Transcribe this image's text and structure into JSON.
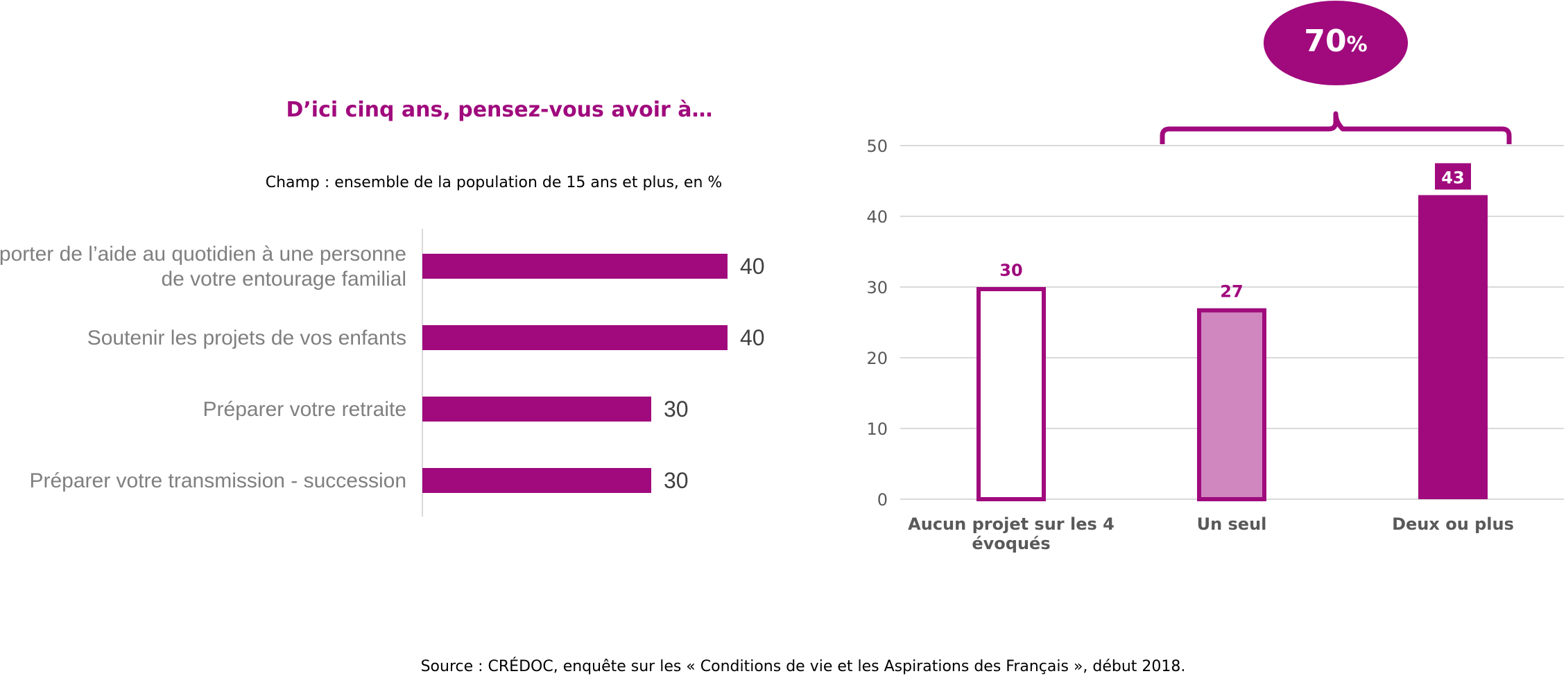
{
  "title": "D’ici cinq ans, pensez-vous avoir à…",
  "subtitle": "Champ : ensemble de la population de 15 ans et plus, en %",
  "source": "Source : CRÉDOC, enquête sur les « Conditions de vie et les Aspirations des Français », début 2018.",
  "colors": {
    "accent": "#a00a7d",
    "light": "#d086bf",
    "title": "#a00a7d",
    "axis_text": "#595959",
    "grid": "#d9d9d9",
    "cat_text": "#7f7f7f"
  },
  "callout": {
    "number": "70",
    "unit": "%"
  },
  "chart_data": [
    {
      "type": "bar",
      "orientation": "horizontal",
      "categories": [
        [
          "Apporter de l’aide au quotidien à une personne",
          "de votre entourage familial"
        ],
        [
          "Soutenir les projets de vos enfants"
        ],
        [
          "Préparer votre retraite"
        ],
        [
          "Préparer votre transmission - succession"
        ]
      ],
      "values": [
        40,
        40,
        30,
        30
      ],
      "labels": [
        "40",
        "40",
        "30",
        "30"
      ],
      "grid": false
    },
    {
      "type": "bar",
      "orientation": "vertical",
      "categories": [
        [
          "Aucun projet sur les 4",
          "évoqués"
        ],
        [
          "Un seul"
        ],
        [
          "Deux ou plus"
        ]
      ],
      "values": [
        30,
        27,
        43
      ],
      "labels": [
        "30",
        "27",
        "43"
      ],
      "styles": [
        "outline",
        "light",
        "solid"
      ],
      "ylim": [
        0,
        50
      ],
      "yticks": [
        "0",
        "10",
        "20",
        "30",
        "40",
        "50"
      ],
      "grid": true
    }
  ]
}
